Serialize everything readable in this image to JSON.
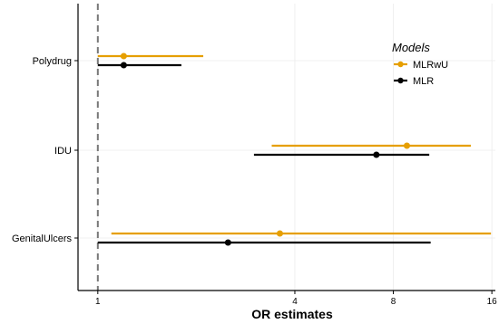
{
  "chart_data": {
    "type": "forest",
    "xlabel": "OR estimates",
    "ylabel": "",
    "title": "",
    "x_scale": "log2",
    "xlim": [
      0.87,
      16.4
    ],
    "x_ticks": [
      1,
      4,
      8,
      16
    ],
    "x_tick_labels": [
      "1",
      "4",
      "8",
      "16"
    ],
    "reference_line": 1,
    "grid": true,
    "categories": [
      "Polydrug",
      "IDU",
      "GenitalUlcers"
    ],
    "legend": {
      "title": "Models",
      "position": "top-right"
    },
    "series": [
      {
        "name": "MLRwU",
        "color": "#E69F00",
        "points": [
          {
            "category": "Polydrug",
            "estimate": 1.2,
            "lower": 1.0,
            "upper": 2.1
          },
          {
            "category": "IDU",
            "estimate": 8.8,
            "lower": 3.4,
            "upper": 13.8
          },
          {
            "category": "GenitalUlcers",
            "estimate": 3.6,
            "lower": 1.1,
            "upper": 15.9
          }
        ]
      },
      {
        "name": "MLR",
        "color": "#000000",
        "points": [
          {
            "category": "Polydrug",
            "estimate": 1.2,
            "lower": 1.0,
            "upper": 1.8
          },
          {
            "category": "IDU",
            "estimate": 7.1,
            "lower": 3.0,
            "upper": 10.3
          },
          {
            "category": "GenitalUlcers",
            "estimate": 2.5,
            "lower": 1.0,
            "upper": 10.4
          }
        ]
      }
    ]
  }
}
